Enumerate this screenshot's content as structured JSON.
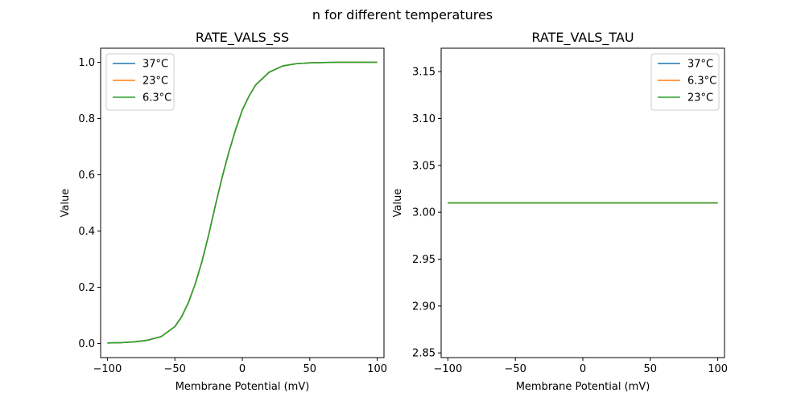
{
  "figure": {
    "suptitle": "n for different temperatures"
  },
  "colors": {
    "c37": "#1f77b4",
    "c23": "#ff7f0e",
    "c63": "#2ca02c"
  },
  "chart_data": [
    {
      "type": "line",
      "title": "RATE_VALS_SS",
      "xlabel": "Membrane Potential (mV)",
      "ylabel": "Value",
      "xlim": [
        -105,
        105
      ],
      "ylim": [
        -0.05,
        1.05
      ],
      "xticks": [
        -100,
        -50,
        0,
        50,
        100
      ],
      "xtick_labels": [
        "−100",
        "−50",
        "0",
        "50",
        "100"
      ],
      "yticks": [
        0.0,
        0.2,
        0.4,
        0.6,
        0.8,
        1.0
      ],
      "ytick_labels": [
        "0.0",
        "0.2",
        "0.4",
        "0.6",
        "0.8",
        "1.0"
      ],
      "legend_loc": "upper-left",
      "x": [
        -100,
        -90,
        -80,
        -70,
        -60,
        -50,
        -45,
        -40,
        -35,
        -30,
        -25,
        -20,
        -15,
        -10,
        -5,
        0,
        5,
        10,
        20,
        30,
        40,
        50,
        60,
        70,
        80,
        90,
        100
      ],
      "series": [
        {
          "name": "37°C",
          "color_key": "c37",
          "values": [
            0.002,
            0.003,
            0.006,
            0.012,
            0.025,
            0.06,
            0.095,
            0.145,
            0.21,
            0.29,
            0.385,
            0.49,
            0.59,
            0.68,
            0.76,
            0.83,
            0.88,
            0.92,
            0.965,
            0.987,
            0.995,
            0.998,
            0.999,
            1.0,
            1.0,
            1.0,
            1.0
          ]
        },
        {
          "name": "23°C",
          "color_key": "c23",
          "values": [
            0.002,
            0.003,
            0.006,
            0.012,
            0.025,
            0.06,
            0.095,
            0.145,
            0.21,
            0.29,
            0.385,
            0.49,
            0.59,
            0.68,
            0.76,
            0.83,
            0.88,
            0.92,
            0.965,
            0.987,
            0.995,
            0.998,
            0.999,
            1.0,
            1.0,
            1.0,
            1.0
          ]
        },
        {
          "name": "6.3°C",
          "color_key": "c63",
          "values": [
            0.002,
            0.003,
            0.006,
            0.012,
            0.025,
            0.06,
            0.095,
            0.145,
            0.21,
            0.29,
            0.385,
            0.49,
            0.59,
            0.68,
            0.76,
            0.83,
            0.88,
            0.92,
            0.965,
            0.987,
            0.995,
            0.998,
            0.999,
            1.0,
            1.0,
            1.0,
            1.0
          ]
        }
      ]
    },
    {
      "type": "line",
      "title": "RATE_VALS_TAU",
      "xlabel": "Membrane Potential (mV)",
      "ylabel": "Value",
      "xlim": [
        -105,
        105
      ],
      "ylim": [
        2.845,
        3.175
      ],
      "xticks": [
        -100,
        -50,
        0,
        50,
        100
      ],
      "xtick_labels": [
        "−100",
        "−50",
        "0",
        "50",
        "100"
      ],
      "yticks": [
        2.85,
        2.9,
        2.95,
        3.0,
        3.05,
        3.1,
        3.15
      ],
      "ytick_labels": [
        "2.85",
        "2.90",
        "2.95",
        "3.00",
        "3.05",
        "3.10",
        "3.15"
      ],
      "legend_loc": "upper-right",
      "x": [
        -100,
        100
      ],
      "series": [
        {
          "name": "37°C",
          "color_key": "c37",
          "values": [
            3.01,
            3.01
          ]
        },
        {
          "name": "6.3°C",
          "color_key": "c23",
          "values": [
            3.01,
            3.01
          ]
        },
        {
          "name": "23°C",
          "color_key": "c63",
          "values": [
            3.01,
            3.01
          ]
        }
      ]
    }
  ]
}
